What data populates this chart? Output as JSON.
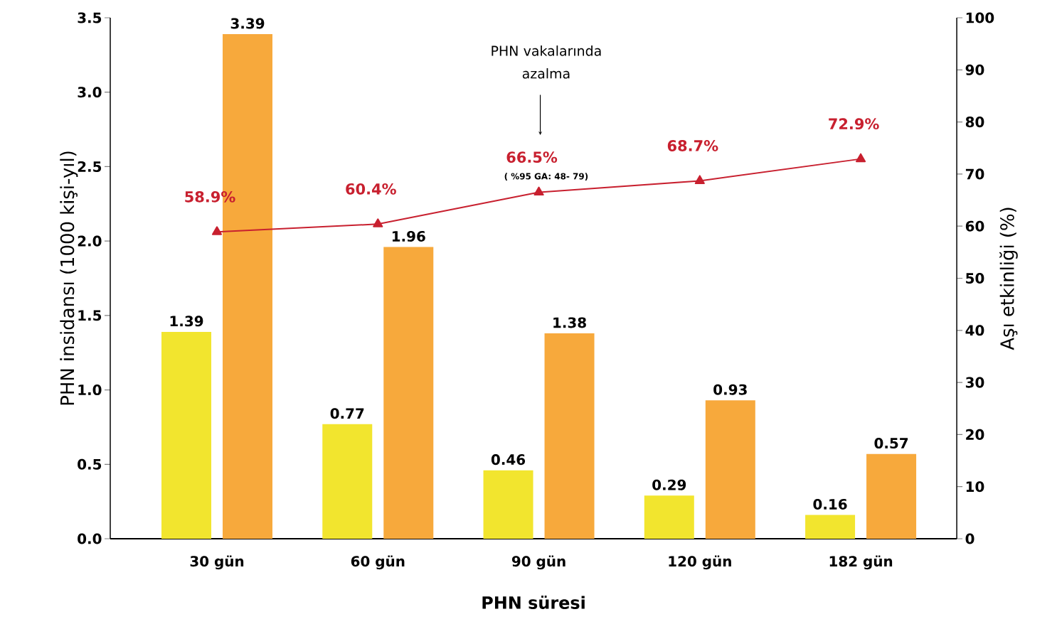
{
  "chart_data": {
    "type": "bar",
    "xlabel": "PHN süresi",
    "ylabel": "PHN insidansı (1000 kişi-yıl)",
    "y2label": "Aşı etkinliği (%)",
    "categories": [
      "30 gün",
      "60 gün",
      "90 gün",
      "120 gün",
      "182 gün"
    ],
    "series": [
      {
        "color": "#f2e52e",
        "values": [
          1.39,
          0.77,
          0.46,
          0.29,
          0.16
        ]
      },
      {
        "color": "#f7a93c",
        "values": [
          3.39,
          1.96,
          1.38,
          0.93,
          0.57
        ]
      },
      {
        "type": "line",
        "axis": "y2",
        "color": "#c8202f",
        "values": [
          58.9,
          60.4,
          66.5,
          68.7,
          72.9
        ],
        "value_labels": [
          "58.9%",
          "60.4%",
          "66.5%",
          "68.7%",
          "72.9%"
        ]
      }
    ],
    "ylim": [
      0,
      3.5
    ],
    "yticks": [
      {
        "value": 0,
        "label": "0.0"
      },
      0.5,
      {
        "value": 1,
        "label": "1.0"
      },
      1.5,
      {
        "value": 2,
        "label": "2.0"
      },
      2.5,
      {
        "value": 3,
        "label": "3.0"
      },
      3.5
    ],
    "y2lim": [
      0,
      100
    ],
    "y2ticks": [
      0,
      10,
      20,
      30,
      40,
      50,
      60,
      70,
      80,
      90,
      100
    ],
    "data_labels": true,
    "marker": "triangle",
    "line_style": "solid",
    "grid": false,
    "annotations": [
      "PHN vakalarında azalma",
      "( %95 GA: 48- 79)"
    ]
  }
}
